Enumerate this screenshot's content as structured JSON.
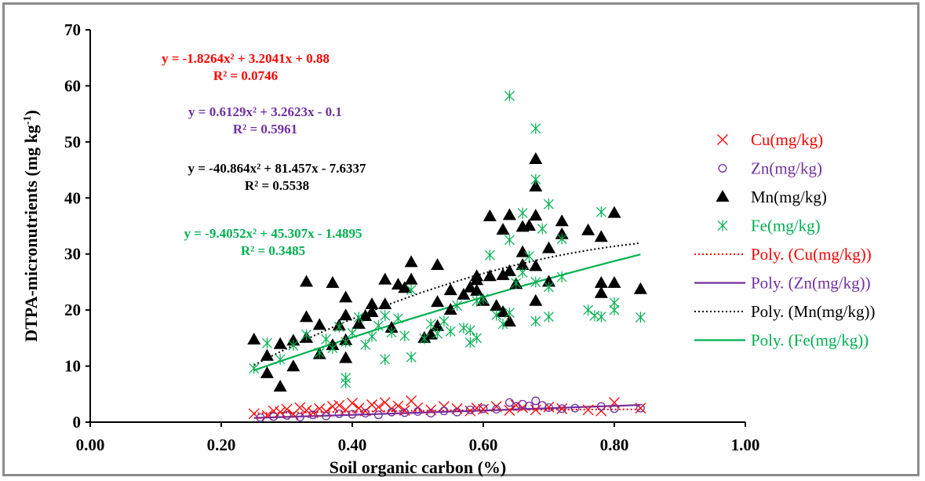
{
  "chart_data": {
    "type": "scatter",
    "xlabel": "Soil organic carbon (%)",
    "ylabel": "DTPA-micronutrients (mg kg",
    "ylabel_sup": "-1",
    "ylabel_end": ")",
    "xlim": [
      0,
      1.0
    ],
    "ylim": [
      0,
      70
    ],
    "x_ticks": [
      "0.00",
      "0.20",
      "0.40",
      "0.60",
      "0.80",
      "1.00"
    ],
    "y_ticks": [
      "0",
      "10",
      "20",
      "30",
      "40",
      "50",
      "60",
      "70"
    ],
    "grid": false,
    "legend_position": "right",
    "series": [
      {
        "name": "Cu(mg/kg)",
        "marker": "x",
        "color": "#ff0000",
        "points": [
          [
            0.25,
            1.5
          ],
          [
            0.27,
            1.2
          ],
          [
            0.28,
            2.0
          ],
          [
            0.29,
            1.8
          ],
          [
            0.3,
            2.3
          ],
          [
            0.31,
            1.4
          ],
          [
            0.32,
            2.6
          ],
          [
            0.33,
            2.1
          ],
          [
            0.34,
            1.7
          ],
          [
            0.35,
            2.4
          ],
          [
            0.36,
            1.9
          ],
          [
            0.37,
            2.8
          ],
          [
            0.38,
            3.0
          ],
          [
            0.39,
            2.2
          ],
          [
            0.4,
            3.4
          ],
          [
            0.41,
            2.5
          ],
          [
            0.42,
            2.0
          ],
          [
            0.43,
            3.1
          ],
          [
            0.44,
            2.7
          ],
          [
            0.45,
            3.5
          ],
          [
            0.46,
            2.4
          ],
          [
            0.47,
            2.9
          ],
          [
            0.48,
            2.1
          ],
          [
            0.49,
            3.8
          ],
          [
            0.5,
            2.6
          ],
          [
            0.52,
            2.2
          ],
          [
            0.54,
            2.8
          ],
          [
            0.56,
            2.4
          ],
          [
            0.58,
            2.0
          ],
          [
            0.59,
            2.5
          ],
          [
            0.6,
            2.3
          ],
          [
            0.62,
            2.8
          ],
          [
            0.64,
            2.1
          ],
          [
            0.65,
            3.0
          ],
          [
            0.66,
            2.6
          ],
          [
            0.68,
            2.2
          ],
          [
            0.7,
            2.7
          ],
          [
            0.72,
            2.4
          ],
          [
            0.76,
            2.2
          ],
          [
            0.78,
            2.0
          ],
          [
            0.8,
            3.5
          ],
          [
            0.84,
            2.5
          ]
        ]
      },
      {
        "name": "Zn(mg/kg)",
        "marker": "circle",
        "color": "#7030a0",
        "points": [
          [
            0.26,
            0.8
          ],
          [
            0.28,
            1.0
          ],
          [
            0.3,
            1.2
          ],
          [
            0.32,
            0.9
          ],
          [
            0.34,
            1.3
          ],
          [
            0.36,
            1.1
          ],
          [
            0.38,
            1.5
          ],
          [
            0.4,
            1.4
          ],
          [
            0.42,
            1.6
          ],
          [
            0.44,
            1.3
          ],
          [
            0.46,
            1.8
          ],
          [
            0.48,
            1.7
          ],
          [
            0.5,
            1.9
          ],
          [
            0.52,
            1.6
          ],
          [
            0.54,
            2.0
          ],
          [
            0.56,
            1.8
          ],
          [
            0.58,
            2.2
          ],
          [
            0.6,
            2.4
          ],
          [
            0.62,
            2.3
          ],
          [
            0.64,
            3.5
          ],
          [
            0.65,
            2.8
          ],
          [
            0.66,
            3.2
          ],
          [
            0.67,
            2.9
          ],
          [
            0.68,
            3.8
          ],
          [
            0.69,
            3.0
          ],
          [
            0.7,
            2.6
          ],
          [
            0.72,
            2.4
          ],
          [
            0.74,
            2.5
          ],
          [
            0.78,
            2.8
          ],
          [
            0.8,
            2.4
          ],
          [
            0.84,
            2.5
          ]
        ]
      },
      {
        "name": "Mn(mg/kg)",
        "marker": "triangle",
        "color": "#000000",
        "points": [
          [
            0.25,
            14.7
          ],
          [
            0.27,
            11.8
          ],
          [
            0.27,
            8.7
          ],
          [
            0.29,
            13.9
          ],
          [
            0.29,
            6.3
          ],
          [
            0.31,
            9.9
          ],
          [
            0.31,
            14.5
          ],
          [
            0.33,
            25.0
          ],
          [
            0.33,
            18.7
          ],
          [
            0.33,
            15.0
          ],
          [
            0.35,
            17.3
          ],
          [
            0.35,
            12.1
          ],
          [
            0.37,
            24.8
          ],
          [
            0.37,
            13.7
          ],
          [
            0.38,
            17.2
          ],
          [
            0.39,
            22.2
          ],
          [
            0.39,
            19.0
          ],
          [
            0.39,
            14.6
          ],
          [
            0.39,
            11.4
          ],
          [
            0.41,
            17.5
          ],
          [
            0.42,
            18.9
          ],
          [
            0.43,
            21.0
          ],
          [
            0.43,
            19.6
          ],
          [
            0.45,
            25.4
          ],
          [
            0.45,
            21.0
          ],
          [
            0.46,
            16.8
          ],
          [
            0.47,
            24.5
          ],
          [
            0.48,
            23.9
          ],
          [
            0.49,
            28.5
          ],
          [
            0.49,
            25.4
          ],
          [
            0.51,
            15.0
          ],
          [
            0.52,
            15.6
          ],
          [
            0.53,
            28.0
          ],
          [
            0.53,
            21.4
          ],
          [
            0.53,
            17.1
          ],
          [
            0.55,
            23.5
          ],
          [
            0.55,
            20.0
          ],
          [
            0.57,
            22.7
          ],
          [
            0.58,
            24.0
          ],
          [
            0.59,
            26.0
          ],
          [
            0.59,
            25.3
          ],
          [
            0.59,
            23.4
          ],
          [
            0.6,
            21.6
          ],
          [
            0.61,
            36.7
          ],
          [
            0.61,
            26.0
          ],
          [
            0.62,
            20.7
          ],
          [
            0.63,
            34.3
          ],
          [
            0.63,
            26.2
          ],
          [
            0.63,
            19.6
          ],
          [
            0.64,
            36.9
          ],
          [
            0.64,
            26.9
          ],
          [
            0.64,
            17.9
          ],
          [
            0.65,
            24.6
          ],
          [
            0.66,
            34.8
          ],
          [
            0.66,
            30.3
          ],
          [
            0.66,
            28.0
          ],
          [
            0.67,
            35.0
          ],
          [
            0.68,
            46.9
          ],
          [
            0.68,
            42.0
          ],
          [
            0.68,
            36.8
          ],
          [
            0.68,
            27.8
          ],
          [
            0.68,
            21.6
          ],
          [
            0.7,
            31.0
          ],
          [
            0.7,
            25.0
          ],
          [
            0.72,
            35.8
          ],
          [
            0.72,
            33.5
          ],
          [
            0.76,
            34.2
          ],
          [
            0.78,
            33.0
          ],
          [
            0.78,
            24.8
          ],
          [
            0.78,
            23.0
          ],
          [
            0.8,
            37.3
          ],
          [
            0.8,
            24.8
          ],
          [
            0.84,
            23.7
          ]
        ]
      },
      {
        "name": "Fe(mg/kg)",
        "marker": "asterisk",
        "color": "#00b050",
        "points": [
          [
            0.25,
            9.6
          ],
          [
            0.27,
            14.1
          ],
          [
            0.29,
            11.2
          ],
          [
            0.31,
            13.7
          ],
          [
            0.33,
            15.6
          ],
          [
            0.35,
            12.4
          ],
          [
            0.36,
            14.8
          ],
          [
            0.37,
            13.2
          ],
          [
            0.38,
            17.0
          ],
          [
            0.39,
            7.9
          ],
          [
            0.39,
            7.0
          ],
          [
            0.39,
            14.3
          ],
          [
            0.4,
            15.9
          ],
          [
            0.41,
            18.7
          ],
          [
            0.42,
            13.8
          ],
          [
            0.43,
            15.3
          ],
          [
            0.44,
            17.2
          ],
          [
            0.45,
            19.0
          ],
          [
            0.45,
            11.2
          ],
          [
            0.46,
            16.0
          ],
          [
            0.47,
            18.5
          ],
          [
            0.48,
            15.4
          ],
          [
            0.49,
            11.6
          ],
          [
            0.49,
            23.6
          ],
          [
            0.51,
            14.9
          ],
          [
            0.52,
            17.5
          ],
          [
            0.53,
            15.8
          ],
          [
            0.54,
            18.0
          ],
          [
            0.55,
            16.2
          ],
          [
            0.56,
            20.8
          ],
          [
            0.57,
            16.8
          ],
          [
            0.58,
            14.2
          ],
          [
            0.58,
            16.4
          ],
          [
            0.59,
            15.0
          ],
          [
            0.59,
            21.6
          ],
          [
            0.6,
            22.0
          ],
          [
            0.61,
            29.8
          ],
          [
            0.62,
            19.1
          ],
          [
            0.63,
            17.5
          ],
          [
            0.64,
            58.2
          ],
          [
            0.64,
            19.5
          ],
          [
            0.64,
            32.5
          ],
          [
            0.65,
            24.8
          ],
          [
            0.66,
            37.3
          ],
          [
            0.66,
            26.7
          ],
          [
            0.67,
            29.6
          ],
          [
            0.68,
            52.4
          ],
          [
            0.68,
            43.3
          ],
          [
            0.68,
            25.0
          ],
          [
            0.68,
            18.0
          ],
          [
            0.69,
            34.5
          ],
          [
            0.7,
            38.9
          ],
          [
            0.7,
            24.1
          ],
          [
            0.7,
            18.8
          ],
          [
            0.72,
            32.7
          ],
          [
            0.72,
            25.9
          ],
          [
            0.76,
            20.0
          ],
          [
            0.77,
            19.0
          ],
          [
            0.78,
            37.5
          ],
          [
            0.78,
            18.8
          ],
          [
            0.8,
            21.3
          ],
          [
            0.8,
            20.0
          ],
          [
            0.84,
            18.7
          ]
        ]
      }
    ],
    "trendlines": [
      {
        "name": "Poly. (Cu(mg/kg))",
        "a": -1.8264,
        "b": 3.2041,
        "c": 0.88,
        "x_range": [
          0.25,
          0.84
        ],
        "color": "#ff0000",
        "style": "dotted"
      },
      {
        "name": "Poly. (Zn(mg/kg))",
        "a": 0.6129,
        "b": 3.2623,
        "c": -0.1,
        "x_range": [
          0.25,
          0.84
        ],
        "color": "#7030a0",
        "style": "solid"
      },
      {
        "name": "Poly. (Mn(mg/kg))",
        "a": -40.864,
        "b": 81.457,
        "c": -7.6337,
        "x_range": [
          0.25,
          0.84
        ],
        "color": "#000000",
        "style": "dotted"
      },
      {
        "name": "Poly. (Fe(mg/kg))",
        "a": -9.4052,
        "b": 45.307,
        "c": -1.4895,
        "x_range": [
          0.25,
          0.84
        ],
        "color": "#00b050",
        "style": "solid"
      }
    ],
    "annotations": [
      {
        "equation": "y = -1.8264x² + 3.2041x + 0.88",
        "r2": "R² = 0.0746",
        "color": "#ff0000"
      },
      {
        "equation": "y = 0.6129x² + 3.2623x - 0.1",
        "r2": "R² = 0.5961",
        "color": "#7030a0"
      },
      {
        "equation": "y = -40.864x² + 81.457x - 7.6337",
        "r2": "R² = 0.5538",
        "color": "#000000"
      },
      {
        "equation": "y = -9.4052x² + 45.307x - 1.4895",
        "r2": "R² = 0.3485",
        "color": "#00b050"
      }
    ]
  },
  "legend": [
    {
      "label": "Cu(mg/kg)",
      "kind": "marker",
      "marker": "x",
      "color": "#ff0000"
    },
    {
      "label": "Zn(mg/kg)",
      "kind": "marker",
      "marker": "circle",
      "color": "#7030a0"
    },
    {
      "label": "Mn(mg/kg)",
      "kind": "marker",
      "marker": "triangle",
      "color": "#000000"
    },
    {
      "label": "Fe(mg/kg)",
      "kind": "marker",
      "marker": "asterisk",
      "color": "#00b050"
    },
    {
      "label": "Poly. (Cu(mg/kg))",
      "kind": "line",
      "style": "dotted",
      "color": "#ff0000"
    },
    {
      "label": "Poly. (Zn(mg/kg))",
      "kind": "line",
      "style": "solid",
      "color": "#7030a0"
    },
    {
      "label": "Poly. (Mn(mg/kg))",
      "kind": "line",
      "style": "dotted",
      "color": "#000000"
    },
    {
      "label": "Poly. (Fe(mg/kg))",
      "kind": "line",
      "style": "solid",
      "color": "#00b050"
    }
  ]
}
